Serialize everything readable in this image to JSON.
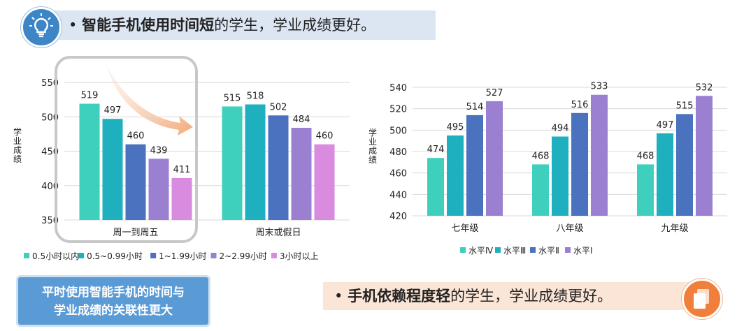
{
  "header": {
    "bullet": "•",
    "bold": "智能手机使用时间短",
    "rest": "的学生，学业成绩更好。",
    "icon": "lightbulb-icon"
  },
  "footer": {
    "bullet": "•",
    "bold": "手机依赖程度轻",
    "rest": "的学生，学业成绩更好。",
    "icon": "documents-icon"
  },
  "callout": {
    "line1": "平时使用智能手机的时间与",
    "line2": "学业成绩的关联性更大"
  },
  "chart_data": [
    {
      "type": "bar",
      "ylabel": "学业成绩",
      "ylim": [
        350,
        550
      ],
      "yticks": [
        350,
        400,
        450,
        500,
        550
      ],
      "categories": [
        "周一到周五",
        "周末或假日"
      ],
      "series": [
        {
          "name": "0.5小时以内",
          "color": "#3fcfbd",
          "values": [
            519,
            515
          ]
        },
        {
          "name": "0.5~0.99小时",
          "color": "#1fb0bf",
          "values": [
            497,
            518
          ]
        },
        {
          "name": "1~1.99小时",
          "color": "#4a72bf",
          "values": [
            460,
            502
          ]
        },
        {
          "name": "2~2.99小时",
          "color": "#9b80d2",
          "values": [
            439,
            484
          ]
        },
        {
          "name": "3小时以上",
          "color": "#d98be0",
          "values": [
            411,
            460
          ]
        }
      ],
      "legend": "bottom",
      "grid": true
    },
    {
      "type": "bar",
      "ylabel": "学业成绩",
      "ylim": [
        420,
        540
      ],
      "yticks": [
        420,
        440,
        460,
        480,
        500,
        520,
        540
      ],
      "categories": [
        "七年级",
        "八年级",
        "九年级"
      ],
      "series": [
        {
          "name": "水平Ⅳ",
          "color": "#3fcfbd",
          "values": [
            474,
            468,
            468
          ]
        },
        {
          "name": "水平Ⅲ",
          "color": "#1fb0bf",
          "values": [
            495,
            494,
            497
          ]
        },
        {
          "name": "水平Ⅱ",
          "color": "#4a72bf",
          "values": [
            514,
            516,
            515
          ]
        },
        {
          "name": "水平Ⅰ",
          "color": "#9b80d2",
          "values": [
            527,
            533,
            532
          ]
        }
      ],
      "legend": "bottom",
      "grid": true
    }
  ]
}
